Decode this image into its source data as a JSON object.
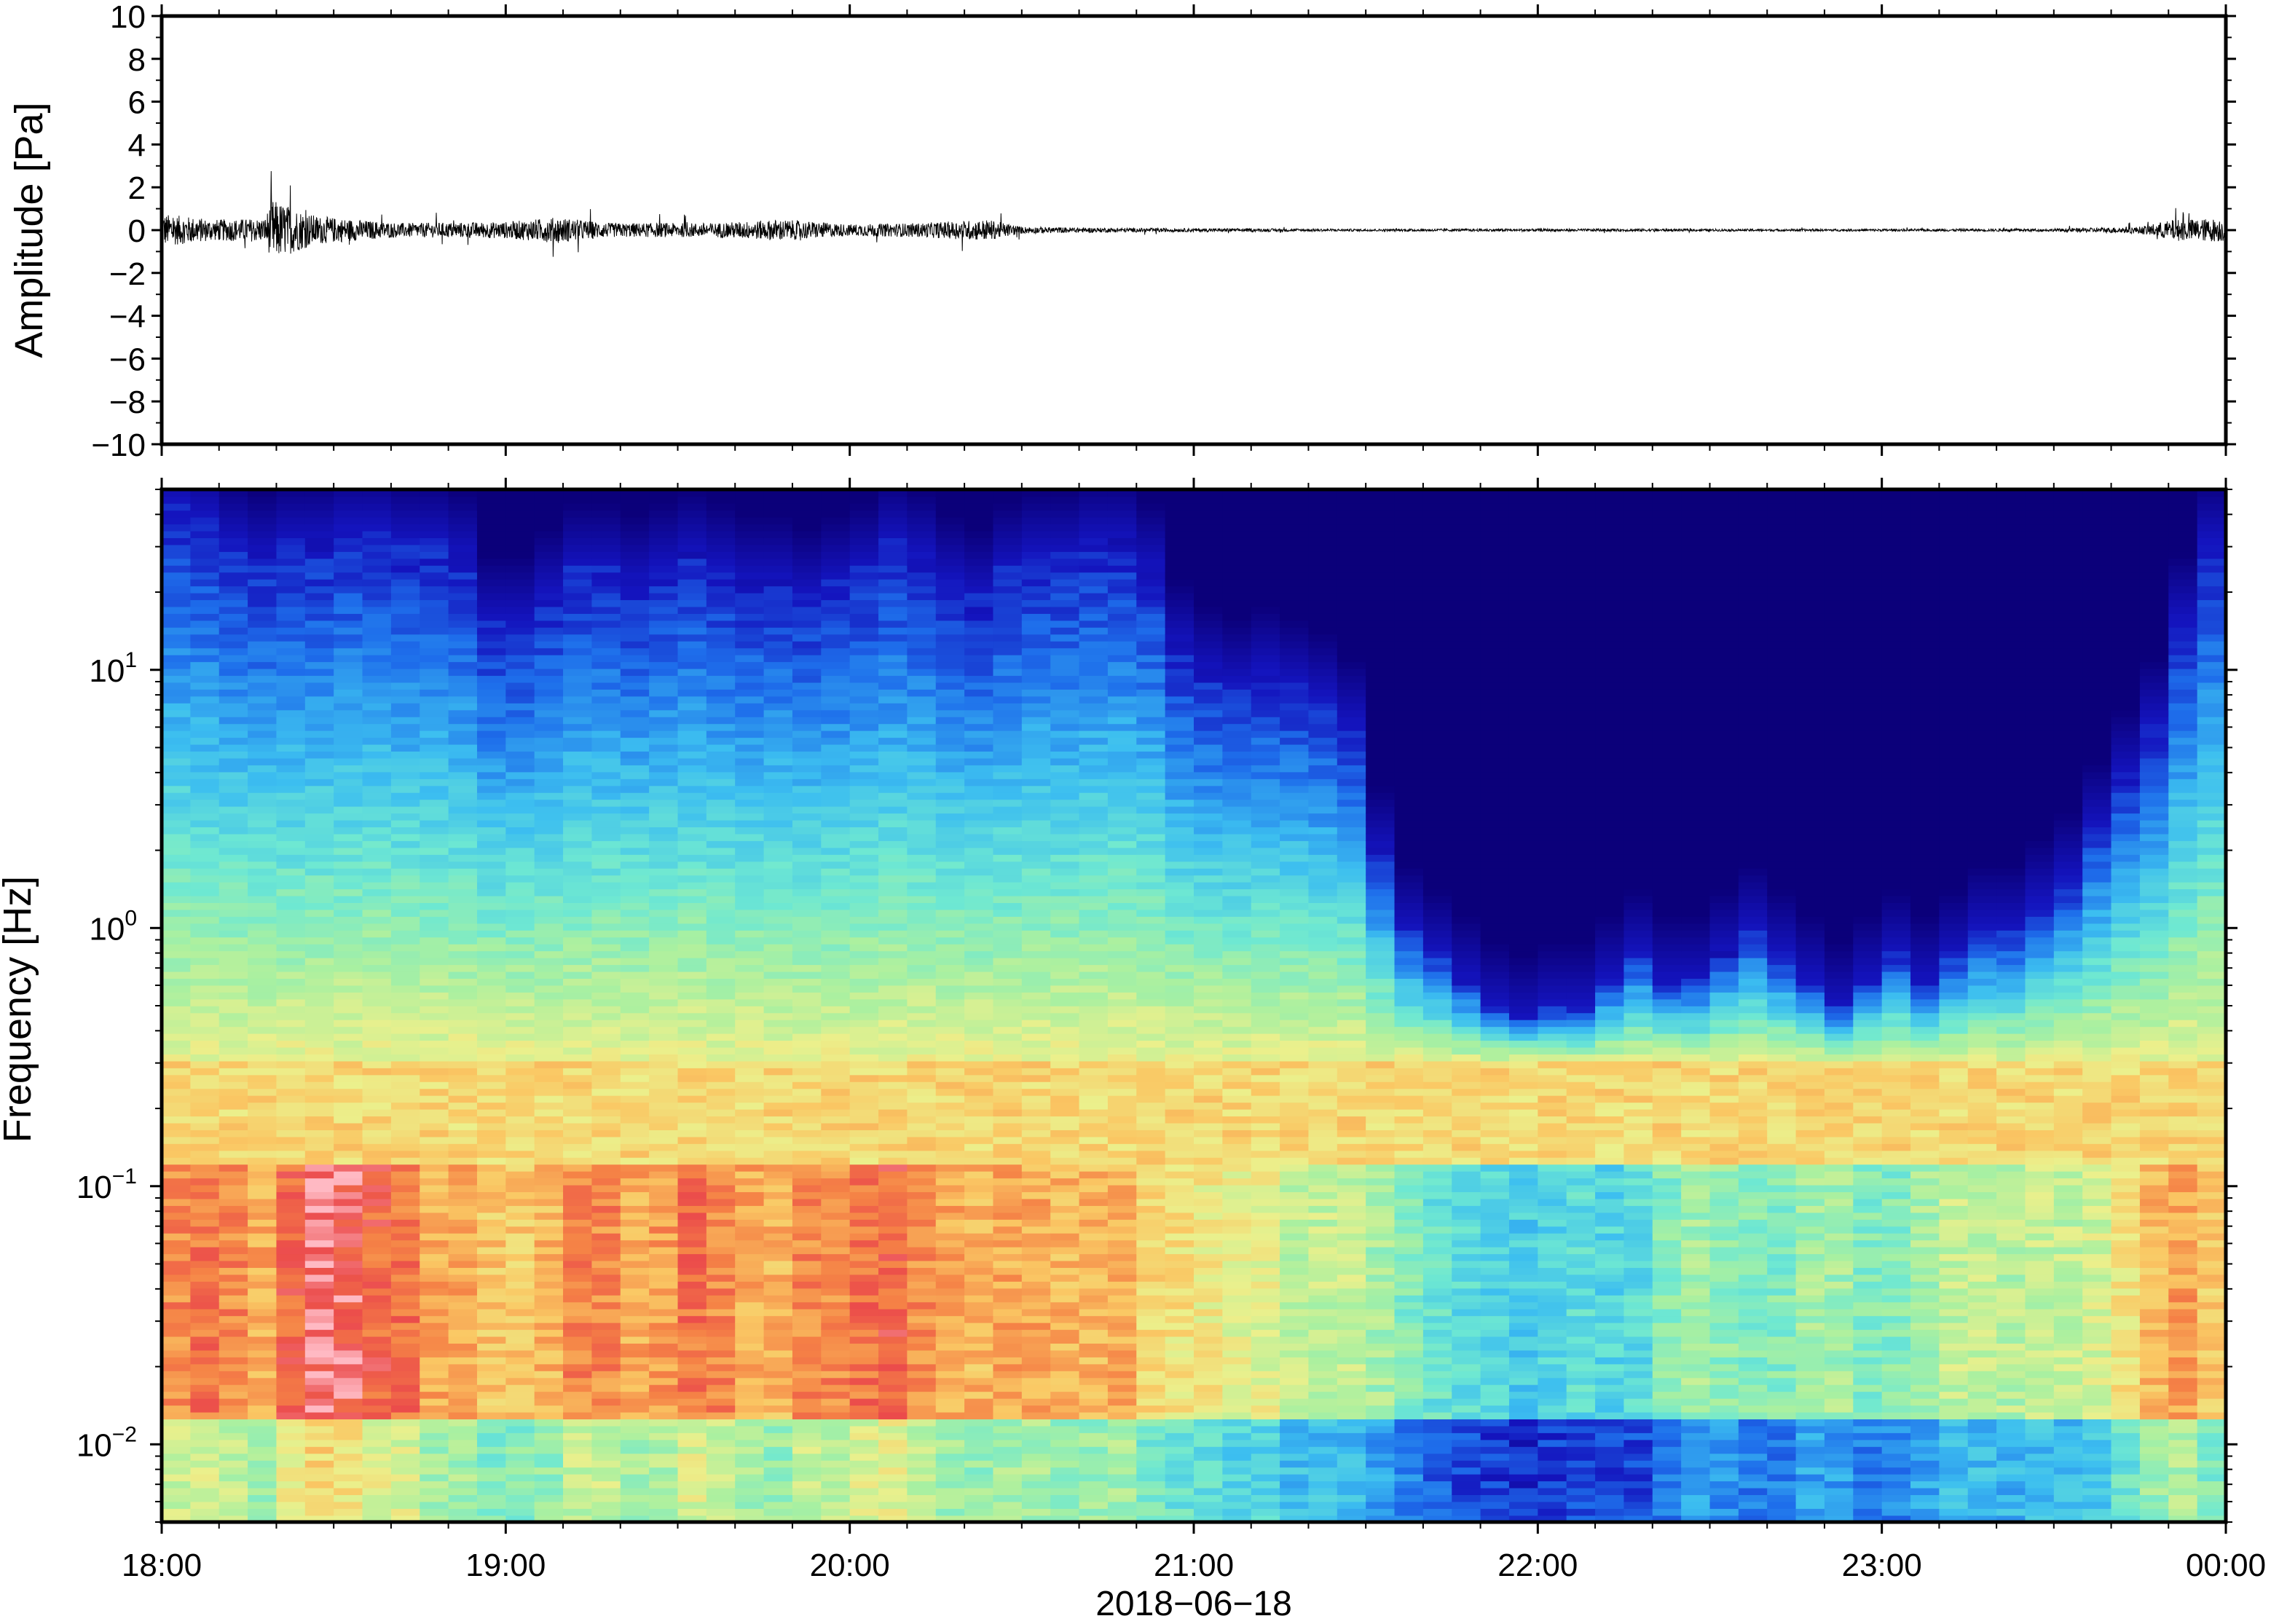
{
  "chart_data": [
    {
      "type": "line",
      "ylabel": "Amplitude [Pa]",
      "ylim": [
        -10,
        10
      ],
      "ytick_labels": [
        "10",
        "8",
        "6",
        "4",
        "2",
        "0",
        "−2",
        "−4",
        "−6",
        "−8",
        "−10"
      ],
      "y_ticks": [
        10,
        8,
        6,
        4,
        2,
        0,
        -2,
        -4,
        -6,
        -8,
        -10
      ],
      "x_range_hours": [
        18,
        24
      ],
      "envelope": {
        "description_points_hours": [
          18.0,
          18.15,
          18.3,
          18.32,
          18.45,
          18.6,
          18.7,
          19.0,
          19.15,
          19.3,
          19.6,
          19.8,
          20.0,
          20.2,
          20.4,
          20.5,
          20.7,
          21.0,
          21.5,
          22.0,
          22.5,
          23.0,
          23.5,
          23.75,
          23.85,
          24.0
        ],
        "amplitude_pa": [
          1.4,
          0.9,
          1.0,
          2.6,
          1.2,
          0.8,
          0.6,
          0.7,
          1.1,
          0.6,
          0.6,
          0.9,
          0.5,
          0.6,
          0.9,
          0.3,
          0.2,
          0.15,
          0.1,
          0.12,
          0.1,
          0.1,
          0.12,
          0.3,
          0.9,
          1.0
        ]
      },
      "grid": false
    },
    {
      "type": "heatmap",
      "ylabel": "Frequency [Hz]",
      "y_scale": "log",
      "ylim": [
        0.005,
        50
      ],
      "ytick_labels": [
        {
          "base": "10",
          "exp": "1",
          "value": 10
        },
        {
          "base": "10",
          "exp": "0",
          "value": 1
        },
        {
          "base": "10",
          "exp": "−1",
          "value": 0.1
        },
        {
          "base": "10",
          "exp": "−2",
          "value": 0.01
        }
      ],
      "xtick_labels": [
        "18:00",
        "19:00",
        "20:00",
        "21:00",
        "22:00",
        "23:00",
        "00:00"
      ],
      "x_ticks_hours": [
        18,
        19,
        20,
        21,
        22,
        23,
        24
      ],
      "xlabel": "2018−06−18",
      "colormap": "rainbow",
      "time_columns": 72,
      "high_freq_cutoff_log10_by_column": [
        1.65,
        1.6,
        1.5,
        1.45,
        1.5,
        1.5,
        1.55,
        1.55,
        1.5,
        1.5,
        1.45,
        1.2,
        1.2,
        1.3,
        1.4,
        1.4,
        1.35,
        1.4,
        1.45,
        1.4,
        1.35,
        1.35,
        1.3,
        1.35,
        1.4,
        1.5,
        1.45,
        1.35,
        1.3,
        1.4,
        1.45,
        1.45,
        1.5,
        1.5,
        1.4,
        1.1,
        1.0,
        0.95,
        1.0,
        0.95,
        0.9,
        0.8,
        0.3,
        0.0,
        -0.1,
        -0.2,
        -0.3,
        -0.35,
        -0.3,
        -0.3,
        -0.2,
        -0.1,
        -0.2,
        -0.2,
        -0.1,
        0.0,
        -0.1,
        -0.2,
        -0.3,
        -0.2,
        -0.1,
        -0.2,
        -0.1,
        0.0,
        0.0,
        0.1,
        0.2,
        0.4,
        0.6,
        0.8,
        1.2,
        1.5
      ],
      "low_freq_power_by_column": [
        0.85,
        0.88,
        0.85,
        0.8,
        0.9,
        0.97,
        0.95,
        0.9,
        0.88,
        0.8,
        0.8,
        0.75,
        0.75,
        0.78,
        0.85,
        0.85,
        0.8,
        0.82,
        0.88,
        0.85,
        0.8,
        0.78,
        0.85,
        0.85,
        0.88,
        0.9,
        0.85,
        0.8,
        0.78,
        0.8,
        0.8,
        0.78,
        0.78,
        0.8,
        0.72,
        0.7,
        0.68,
        0.65,
        0.65,
        0.6,
        0.6,
        0.6,
        0.55,
        0.5,
        0.45,
        0.42,
        0.4,
        0.38,
        0.4,
        0.42,
        0.4,
        0.42,
        0.5,
        0.55,
        0.52,
        0.5,
        0.5,
        0.55,
        0.55,
        0.5,
        0.5,
        0.55,
        0.6,
        0.6,
        0.58,
        0.6,
        0.6,
        0.62,
        0.7,
        0.78,
        0.82,
        0.75
      ],
      "microseism_band_hz": [
        0.12,
        0.3
      ],
      "colors": {
        "low": "#0b007a",
        "mid": "#6ee8d0",
        "high": "#f04a4a",
        "max": "#ffb8c0"
      }
    }
  ]
}
